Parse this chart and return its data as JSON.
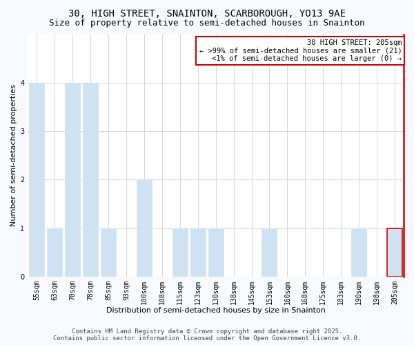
{
  "title1": "30, HIGH STREET, SNAINTON, SCARBOROUGH, YO13 9AE",
  "title2": "Size of property relative to semi-detached houses in Snainton",
  "xlabel": "Distribution of semi-detached houses by size in Snainton",
  "ylabel": "Number of semi-detached properties",
  "categories": [
    "55sqm",
    "63sqm",
    "70sqm",
    "78sqm",
    "85sqm",
    "93sqm",
    "100sqm",
    "108sqm",
    "115sqm",
    "123sqm",
    "130sqm",
    "138sqm",
    "145sqm",
    "153sqm",
    "160sqm",
    "168sqm",
    "175sqm",
    "183sqm",
    "190sqm",
    "198sqm",
    "205sqm"
  ],
  "values": [
    4,
    1,
    4,
    4,
    1,
    0,
    2,
    0,
    1,
    1,
    1,
    0,
    0,
    1,
    0,
    0,
    0,
    0,
    1,
    0,
    1
  ],
  "bar_color": "#cfe2f3",
  "bar_edge_color": "#9fc5e8",
  "highlight_index": 20,
  "highlight_edge_color": "#cc0000",
  "ylim": [
    0,
    5
  ],
  "yticks": [
    0,
    1,
    2,
    3,
    4
  ],
  "annotation_title": "30 HIGH STREET: 205sqm",
  "annotation_line1": "← >99% of semi-detached houses are smaller (21)",
  "annotation_line2": "<1% of semi-detached houses are larger (0) →",
  "annotation_box_color": "#ffffff",
  "annotation_box_edge_color": "#cc0000",
  "footer1": "Contains HM Land Registry data © Crown copyright and database right 2025.",
  "footer2": "Contains public sector information licensed under the Open Government Licence v3.0.",
  "bg_color": "#f8f8ff",
  "plot_bg_color": "#ffffff",
  "grid_color": "#d0d0d0",
  "title_fontsize": 10,
  "subtitle_fontsize": 9,
  "axis_label_fontsize": 8,
  "tick_fontsize": 7,
  "annotation_fontsize": 7.5,
  "footer_fontsize": 6.5
}
